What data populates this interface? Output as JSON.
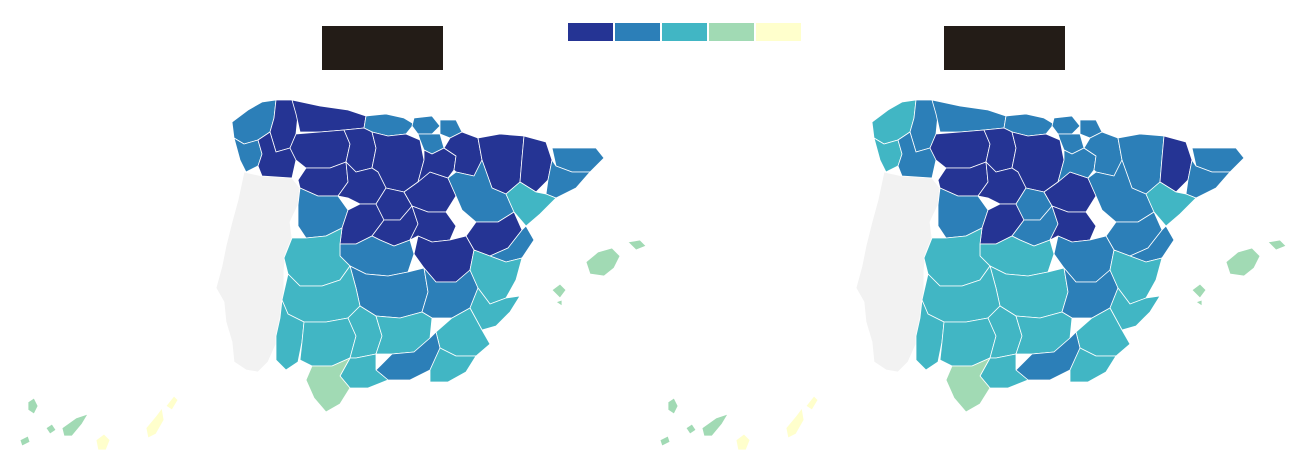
{
  "legend": {
    "colors": [
      "#253494",
      "#2c7fb8",
      "#41b6c4",
      "#a1dab4",
      "#ffffcc"
    ]
  },
  "maps": [
    {
      "title": "",
      "portugal_color": "#f2f2f2",
      "border_color": "#ffffff"
    },
    {
      "title": "",
      "portugal_color": "#f2f2f2",
      "border_color": "#ffffff"
    }
  ]
}
